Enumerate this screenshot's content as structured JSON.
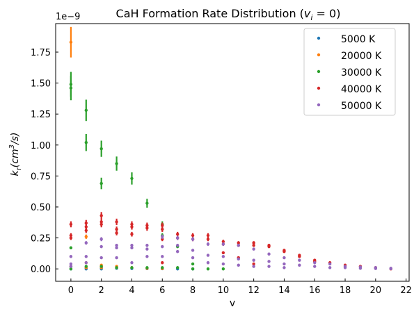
{
  "chart_data": {
    "type": "scatter",
    "title_prefix": "CaH Formation Rate Distribution (",
    "title_var": "v",
    "title_sub": "i",
    "title_suffix": " = 0)",
    "xlabel": "v",
    "ylabel_prefix": "k",
    "ylabel_sub": "r",
    "ylabel_mid": "(cm",
    "ylabel_sup": "3",
    "ylabel_suffix": "/s)",
    "offset_text": "1e−9",
    "xlim": [
      -1,
      22.2
    ],
    "ylim": [
      -0.1,
      1.98
    ],
    "x_ticks": [
      0,
      2,
      4,
      6,
      8,
      10,
      12,
      14,
      16,
      18,
      20,
      22
    ],
    "x_tick_labels": [
      "0",
      "2",
      "4",
      "6",
      "8",
      "10",
      "12",
      "14",
      "16",
      "18",
      "20",
      "22"
    ],
    "y_ticks": [
      0.0,
      0.25,
      0.5,
      0.75,
      1.0,
      1.25,
      1.5,
      1.75
    ],
    "y_tick_labels": [
      "0.00",
      "0.25",
      "0.50",
      "0.75",
      "1.00",
      "1.25",
      "1.50",
      "1.75"
    ],
    "legend_position": "top-right",
    "series": [
      {
        "name": "5000 K",
        "color": "#1f77b4",
        "points": [
          [
            0,
            0.02
          ],
          [
            0,
            0.0
          ],
          [
            1,
            0.01
          ],
          [
            1,
            0.0
          ],
          [
            2,
            0.01
          ],
          [
            2,
            0.0
          ],
          [
            3,
            0.005
          ],
          [
            4,
            0.003
          ],
          [
            5,
            0.002
          ],
          [
            6,
            0.001
          ],
          [
            7,
            0.0
          ],
          [
            8,
            0.0
          ]
        ]
      },
      {
        "name": "20000 K",
        "color": "#ff7f0e",
        "points": [
          [
            0,
            1.83
          ],
          [
            0,
            0.02
          ],
          [
            1,
            0.26
          ],
          [
            1,
            0.05
          ],
          [
            1,
            0.01
          ],
          [
            2,
            0.03
          ],
          [
            2,
            0.01
          ],
          [
            3,
            0.02
          ],
          [
            3,
            0.01
          ],
          [
            4,
            0.01
          ],
          [
            5,
            0.005
          ],
          [
            6,
            0.003
          ]
        ]
      },
      {
        "name": "30000 K",
        "color": "#2ca02c",
        "points": [
          [
            0,
            1.49
          ],
          [
            0,
            1.46
          ],
          [
            0,
            0.17
          ],
          [
            0,
            0.0
          ],
          [
            1,
            1.28
          ],
          [
            1,
            1.02
          ],
          [
            1,
            0.02
          ],
          [
            2,
            0.97
          ],
          [
            2,
            0.69
          ],
          [
            2,
            0.02
          ],
          [
            3,
            0.85
          ],
          [
            3,
            0.01
          ],
          [
            4,
            0.73
          ],
          [
            4,
            0.01
          ],
          [
            5,
            0.53
          ],
          [
            5,
            0.01
          ],
          [
            6,
            0.36
          ],
          [
            6,
            0.27
          ],
          [
            6,
            0.01
          ],
          [
            7,
            0.18
          ],
          [
            7,
            0.01
          ],
          [
            8,
            0.04
          ],
          [
            8,
            0.0
          ],
          [
            9,
            0.0
          ],
          [
            10,
            0.0
          ]
        ]
      },
      {
        "name": "40000 K",
        "color": "#d62728",
        "points": [
          [
            0,
            0.36
          ],
          [
            0,
            0.27
          ],
          [
            0,
            0.25
          ],
          [
            1,
            0.37
          ],
          [
            1,
            0.34
          ],
          [
            1,
            0.31
          ],
          [
            2,
            0.43
          ],
          [
            2,
            0.38
          ],
          [
            2,
            0.36
          ],
          [
            3,
            0.38
          ],
          [
            3,
            0.32
          ],
          [
            3,
            0.29
          ],
          [
            4,
            0.36
          ],
          [
            4,
            0.34
          ],
          [
            4,
            0.28
          ],
          [
            5,
            0.35
          ],
          [
            5,
            0.33
          ],
          [
            6,
            0.35
          ],
          [
            6,
            0.32
          ],
          [
            6,
            0.24
          ],
          [
            6,
            0.05
          ],
          [
            7,
            0.28
          ],
          [
            7,
            0.25
          ],
          [
            8,
            0.27
          ],
          [
            8,
            0.24
          ],
          [
            9,
            0.27
          ],
          [
            9,
            0.24
          ],
          [
            10,
            0.22
          ],
          [
            10,
            0.2
          ],
          [
            10,
            0.13
          ],
          [
            11,
            0.21
          ],
          [
            11,
            0.19
          ],
          [
            11,
            0.09
          ],
          [
            12,
            0.21
          ],
          [
            12,
            0.19
          ],
          [
            12,
            0.04
          ],
          [
            13,
            0.19
          ],
          [
            13,
            0.18
          ],
          [
            14,
            0.15
          ],
          [
            14,
            0.14
          ],
          [
            15,
            0.11
          ],
          [
            15,
            0.1
          ],
          [
            16,
            0.07
          ],
          [
            16,
            0.06
          ],
          [
            17,
            0.05
          ],
          [
            18,
            0.03
          ],
          [
            19,
            0.02
          ],
          [
            20,
            0.01
          ],
          [
            21,
            0.0
          ]
        ]
      },
      {
        "name": "50000 K",
        "color": "#9467bd",
        "points": [
          [
            0,
            0.1
          ],
          [
            0,
            0.04
          ],
          [
            0,
            0.02
          ],
          [
            1,
            0.21
          ],
          [
            1,
            0.1
          ],
          [
            1,
            0.05
          ],
          [
            2,
            0.24
          ],
          [
            2,
            0.18
          ],
          [
            2,
            0.09
          ],
          [
            3,
            0.19
          ],
          [
            3,
            0.17
          ],
          [
            3,
            0.09
          ],
          [
            4,
            0.19
          ],
          [
            4,
            0.17
          ],
          [
            4,
            0.05
          ],
          [
            5,
            0.19
          ],
          [
            5,
            0.16
          ],
          [
            5,
            0.1
          ],
          [
            6,
            0.26
          ],
          [
            6,
            0.18
          ],
          [
            6,
            0.1
          ],
          [
            7,
            0.25
          ],
          [
            7,
            0.19
          ],
          [
            7,
            0.14
          ],
          [
            8,
            0.24
          ],
          [
            8,
            0.15
          ],
          [
            8,
            0.09
          ],
          [
            9,
            0.2
          ],
          [
            9,
            0.11
          ],
          [
            9,
            0.05
          ],
          [
            10,
            0.2
          ],
          [
            10,
            0.1
          ],
          [
            10,
            0.04
          ],
          [
            11,
            0.19
          ],
          [
            11,
            0.08
          ],
          [
            11,
            0.03
          ],
          [
            12,
            0.16
          ],
          [
            12,
            0.07
          ],
          [
            12,
            0.02
          ],
          [
            13,
            0.12
          ],
          [
            13,
            0.06
          ],
          [
            13,
            0.02
          ],
          [
            14,
            0.09
          ],
          [
            14,
            0.04
          ],
          [
            14,
            0.01
          ],
          [
            15,
            0.07
          ],
          [
            15,
            0.03
          ],
          [
            16,
            0.05
          ],
          [
            16,
            0.02
          ],
          [
            17,
            0.04
          ],
          [
            17,
            0.01
          ],
          [
            18,
            0.02
          ],
          [
            18,
            0.01
          ],
          [
            19,
            0.015
          ],
          [
            19,
            0.005
          ],
          [
            20,
            0.01
          ],
          [
            20,
            0.003
          ],
          [
            21,
            0.005
          ],
          [
            21,
            0.001
          ]
        ]
      }
    ]
  }
}
